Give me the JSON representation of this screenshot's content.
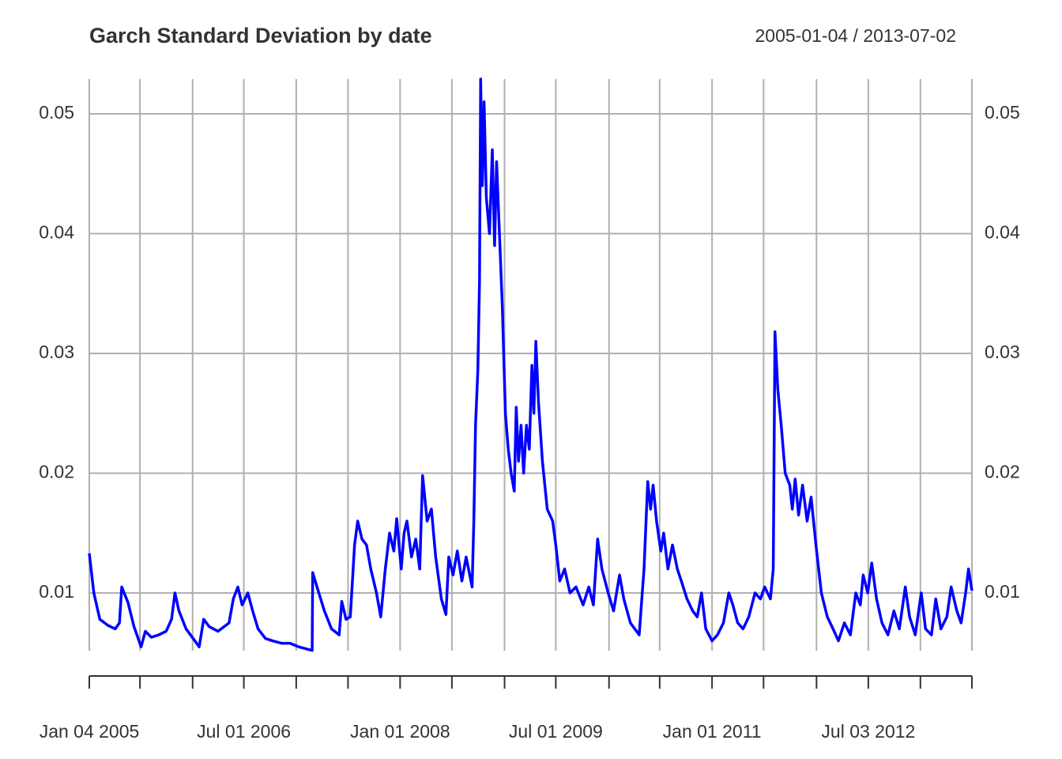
{
  "chart_data": {
    "type": "line",
    "title": "Garch Standard Deviation by date",
    "subtitle": "2005-01-04 / 2013-07-02",
    "xlim": [
      "2005-01-04",
      "2013-07-02"
    ],
    "xticks": [
      {
        "value": "2005-01-04",
        "label": "Jan 04 2005"
      },
      "2005-07-01",
      "2006-01-02",
      {
        "value": "2006-07-01",
        "label": "Jul 01 2006"
      },
      "2007-01-01",
      "2007-07-02",
      {
        "value": "2008-01-01",
        "label": "Jan 01 2008"
      },
      "2008-07-01",
      "2009-01-02",
      {
        "value": "2009-07-01",
        "label": "Jul 01 2009"
      },
      "2010-01-04",
      "2010-07-01",
      {
        "value": "2011-01-01",
        "label": "Jan 01 2011"
      },
      "2011-07-01",
      "2012-01-03",
      {
        "value": "2012-07-03",
        "label": "Jul 03 2012"
      },
      "2013-01-02",
      "2013-07-02"
    ],
    "ylim": [
      0.00518,
      0.0529
    ],
    "yticks": [
      0.01,
      0.02,
      0.03,
      0.04,
      0.05
    ],
    "grid": true,
    "x": [
      "2005-01-04",
      "2005-01-20",
      "2005-02-10",
      "2005-03-10",
      "2005-04-05",
      "2005-04-20",
      "2005-04-28",
      "2005-05-20",
      "2005-06-10",
      "2005-07-05",
      "2005-07-20",
      "2005-08-10",
      "2005-09-05",
      "2005-10-01",
      "2005-10-20",
      "2005-11-01",
      "2005-11-15",
      "2005-12-10",
      "2006-01-10",
      "2006-01-25",
      "2006-02-10",
      "2006-03-01",
      "2006-04-01",
      "2006-05-10",
      "2006-05-25",
      "2006-06-10",
      "2006-06-25",
      "2006-07-15",
      "2006-08-01",
      "2006-08-20",
      "2006-09-15",
      "2006-10-10",
      "2006-11-10",
      "2006-12-10",
      "2007-01-10",
      "2007-02-26",
      "2007-02-28",
      "2007-03-15",
      "2007-04-10",
      "2007-05-05",
      "2007-06-01",
      "2007-06-10",
      "2007-06-25",
      "2007-07-10",
      "2007-07-25",
      "2007-08-05",
      "2007-08-20",
      "2007-09-05",
      "2007-09-20",
      "2007-10-10",
      "2007-10-25",
      "2007-11-10",
      "2007-11-25",
      "2007-12-10",
      "2007-12-20",
      "2008-01-05",
      "2008-01-15",
      "2008-01-25",
      "2008-02-10",
      "2008-02-25",
      "2008-03-10",
      "2008-03-20",
      "2008-04-05",
      "2008-04-20",
      "2008-05-05",
      "2008-05-25",
      "2008-06-10",
      "2008-06-20",
      "2008-07-05",
      "2008-07-20",
      "2008-08-05",
      "2008-08-20",
      "2008-09-10",
      "2008-09-16",
      "2008-09-22",
      "2008-09-30",
      "2008-10-06",
      "2008-10-10",
      "2008-10-16",
      "2008-10-22",
      "2008-10-30",
      "2008-11-10",
      "2008-11-20",
      "2008-11-28",
      "2008-12-05",
      "2008-12-15",
      "2008-12-25",
      "2009-01-05",
      "2009-01-15",
      "2009-01-25",
      "2009-02-05",
      "2009-02-12",
      "2009-02-20",
      "2009-03-01",
      "2009-03-10",
      "2009-03-20",
      "2009-03-30",
      "2009-04-08",
      "2009-04-15",
      "2009-04-22",
      "2009-05-01",
      "2009-05-15",
      "2009-06-01",
      "2009-06-20",
      "2009-07-01",
      "2009-07-15",
      "2009-08-01",
      "2009-08-20",
      "2009-09-10",
      "2009-10-05",
      "2009-10-25",
      "2009-11-10",
      "2009-11-25",
      "2009-12-10",
      "2010-01-01",
      "2010-01-20",
      "2010-02-10",
      "2010-02-25",
      "2010-03-20",
      "2010-04-20",
      "2010-05-07",
      "2010-05-20",
      "2010-05-30",
      "2010-06-08",
      "2010-06-20",
      "2010-07-05",
      "2010-07-15",
      "2010-07-30",
      "2010-08-15",
      "2010-09-01",
      "2010-09-15",
      "2010-10-05",
      "2010-10-25",
      "2010-11-10",
      "2010-11-25",
      "2010-12-10",
      "2011-01-01",
      "2011-01-20",
      "2011-02-10",
      "2011-03-01",
      "2011-03-15",
      "2011-04-01",
      "2011-04-20",
      "2011-05-10",
      "2011-06-01",
      "2011-06-20",
      "2011-07-05",
      "2011-07-25",
      "2011-08-04",
      "2011-08-10",
      "2011-08-20",
      "2011-09-01",
      "2011-09-15",
      "2011-10-01",
      "2011-10-10",
      "2011-10-20",
      "2011-11-01",
      "2011-11-15",
      "2011-12-01",
      "2011-12-15",
      "2012-01-01",
      "2012-01-20",
      "2012-02-10",
      "2012-03-01",
      "2012-03-20",
      "2012-04-10",
      "2012-05-01",
      "2012-05-20",
      "2012-06-05",
      "2012-06-15",
      "2012-07-01",
      "2012-07-15",
      "2012-08-01",
      "2012-08-20",
      "2012-09-10",
      "2012-10-01",
      "2012-10-20",
      "2012-11-10",
      "2012-11-25",
      "2012-12-15",
      "2013-01-05",
      "2013-01-20",
      "2013-02-10",
      "2013-02-25",
      "2013-03-15",
      "2013-04-05",
      "2013-04-20",
      "2013-05-10",
      "2013-05-25",
      "2013-06-10",
      "2013-06-20",
      "2013-07-02"
    ],
    "series": [
      {
        "name": "Garch Standard Deviation",
        "color": "#0000ff",
        "values": [
          0.0133,
          0.01,
          0.0078,
          0.0073,
          0.007,
          0.0075,
          0.0105,
          0.0092,
          0.0072,
          0.0055,
          0.0068,
          0.0063,
          0.0065,
          0.0068,
          0.0078,
          0.01,
          0.0085,
          0.007,
          0.006,
          0.0055,
          0.0078,
          0.0072,
          0.0068,
          0.0075,
          0.0095,
          0.0105,
          0.009,
          0.01,
          0.0085,
          0.007,
          0.0062,
          0.006,
          0.0058,
          0.0058,
          0.0055,
          0.0052,
          0.0117,
          0.0105,
          0.0085,
          0.007,
          0.0065,
          0.0093,
          0.0078,
          0.008,
          0.014,
          0.016,
          0.0145,
          0.014,
          0.012,
          0.01,
          0.008,
          0.012,
          0.015,
          0.0135,
          0.0162,
          0.012,
          0.015,
          0.016,
          0.013,
          0.0145,
          0.012,
          0.0198,
          0.016,
          0.017,
          0.013,
          0.0095,
          0.0082,
          0.013,
          0.0115,
          0.0135,
          0.011,
          0.013,
          0.0105,
          0.016,
          0.024,
          0.0285,
          0.036,
          0.0529,
          0.044,
          0.051,
          0.043,
          0.04,
          0.047,
          0.039,
          0.046,
          0.04,
          0.034,
          0.025,
          0.022,
          0.02,
          0.0185,
          0.0255,
          0.021,
          0.024,
          0.02,
          0.024,
          0.022,
          0.029,
          0.025,
          0.031,
          0.026,
          0.021,
          0.017,
          0.016,
          0.014,
          0.011,
          0.012,
          0.01,
          0.0105,
          0.009,
          0.0105,
          0.009,
          0.0145,
          0.012,
          0.01,
          0.0085,
          0.0115,
          0.0095,
          0.0075,
          0.0065,
          0.012,
          0.0193,
          0.017,
          0.019,
          0.016,
          0.0135,
          0.015,
          0.012,
          0.014,
          0.012,
          0.011,
          0.0095,
          0.0085,
          0.008,
          0.01,
          0.007,
          0.006,
          0.0065,
          0.0075,
          0.01,
          0.009,
          0.0075,
          0.007,
          0.008,
          0.01,
          0.0095,
          0.0105,
          0.0095,
          0.012,
          0.0318,
          0.027,
          0.024,
          0.02,
          0.019,
          0.017,
          0.0195,
          0.0165,
          0.019,
          0.016,
          0.018,
          0.014,
          0.01,
          0.008,
          0.007,
          0.006,
          0.0075,
          0.0065,
          0.01,
          0.009,
          0.0115,
          0.01,
          0.0125,
          0.0095,
          0.0075,
          0.0065,
          0.0085,
          0.007,
          0.0105,
          0.008,
          0.0065,
          0.01,
          0.007,
          0.0065,
          0.0095,
          0.007,
          0.008,
          0.0105,
          0.0085,
          0.0075,
          0.01,
          0.012,
          0.0102
        ]
      }
    ]
  }
}
